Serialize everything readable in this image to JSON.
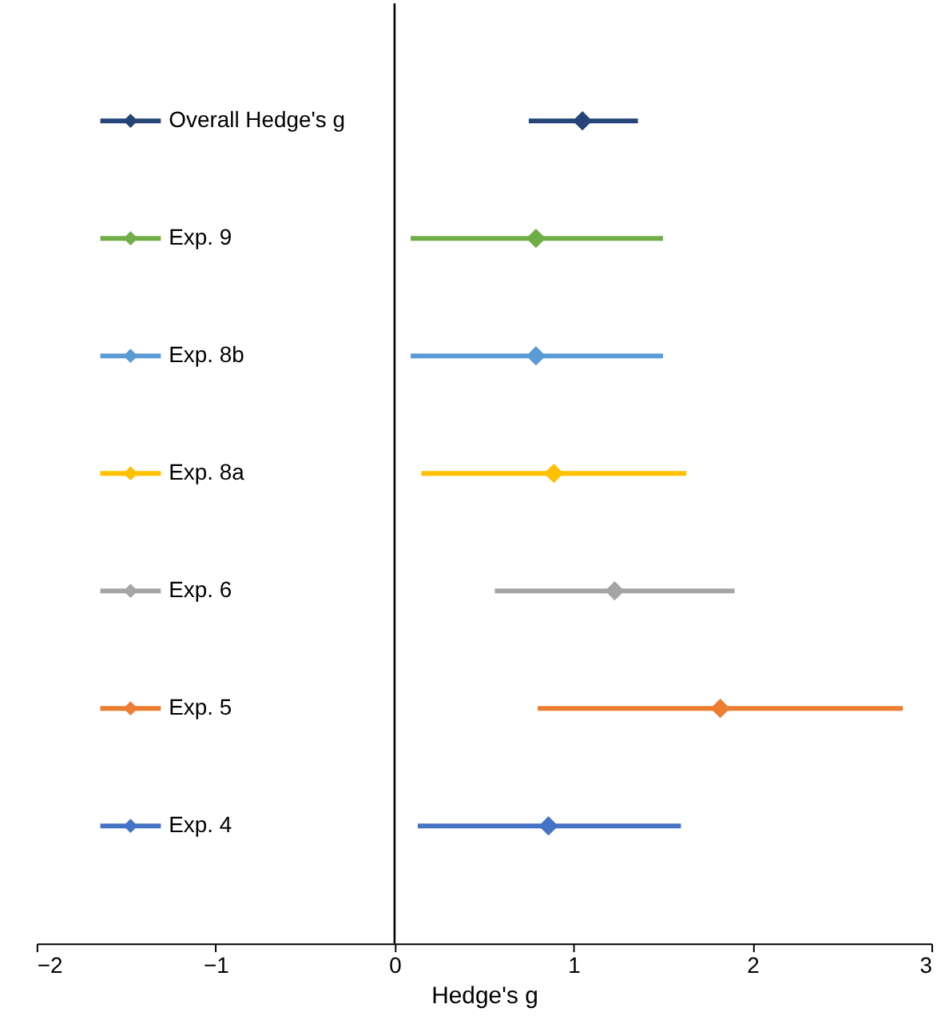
{
  "chart_data": {
    "type": "scatter",
    "orientation": "horizontal",
    "xlabel": "Hedge's g",
    "categories": [
      null,
      null,
      null,
      null,
      null,
      null,
      null
    ],
    "xlim": [
      -2,
      3
    ],
    "xticks": [
      {
        "value": -2,
        "label": "−2"
      },
      {
        "value": -1,
        "label": "−1"
      },
      0,
      1,
      2,
      3
    ],
    "grid": false,
    "legend": "left",
    "marker": "diamond",
    "tick_labels": "x",
    "ref_lines": [
      {
        "axis": "x",
        "value": 0,
        "color": "#000000"
      }
    ],
    "series": [
      {
        "name": "Overall Hedge's g",
        "color": "#264478",
        "values": [
          1.05,
          null,
          null,
          null,
          null,
          null,
          null
        ],
        "errors": [
          [
            0.75,
            1.36
          ],
          null,
          null,
          null,
          null,
          null,
          null
        ]
      },
      {
        "name": "Exp. 9",
        "color": "#70ad47",
        "values": [
          null,
          0.79,
          null,
          null,
          null,
          null,
          null
        ],
        "errors": [
          null,
          [
            0.09,
            1.5
          ],
          null,
          null,
          null,
          null,
          null
        ]
      },
      {
        "name": "Exp. 8b",
        "color": "#5b9bd5",
        "values": [
          null,
          null,
          0.79,
          null,
          null,
          null,
          null
        ],
        "errors": [
          null,
          null,
          [
            0.09,
            1.5
          ],
          null,
          null,
          null,
          null
        ]
      },
      {
        "name": "Exp. 8a",
        "color": "#ffc000",
        "values": [
          null,
          null,
          null,
          0.89,
          null,
          null,
          null
        ],
        "errors": [
          null,
          null,
          null,
          [
            0.15,
            1.63
          ],
          null,
          null,
          null
        ]
      },
      {
        "name": "Exp. 6",
        "color": "#a5a5a5",
        "values": [
          null,
          null,
          null,
          null,
          1.23,
          null,
          null
        ],
        "errors": [
          null,
          null,
          null,
          null,
          [
            0.56,
            1.9
          ],
          null,
          null
        ]
      },
      {
        "name": "Exp. 5",
        "color": "#ed7d31",
        "values": [
          null,
          null,
          null,
          null,
          null,
          1.82,
          null
        ],
        "errors": [
          null,
          null,
          null,
          null,
          null,
          [
            0.8,
            2.84
          ],
          null
        ]
      },
      {
        "name": "Exp. 4",
        "color": "#4472c4",
        "values": [
          null,
          null,
          null,
          null,
          null,
          null,
          0.86
        ],
        "errors": [
          null,
          null,
          null,
          null,
          null,
          null,
          [
            0.13,
            1.6
          ]
        ]
      }
    ]
  }
}
